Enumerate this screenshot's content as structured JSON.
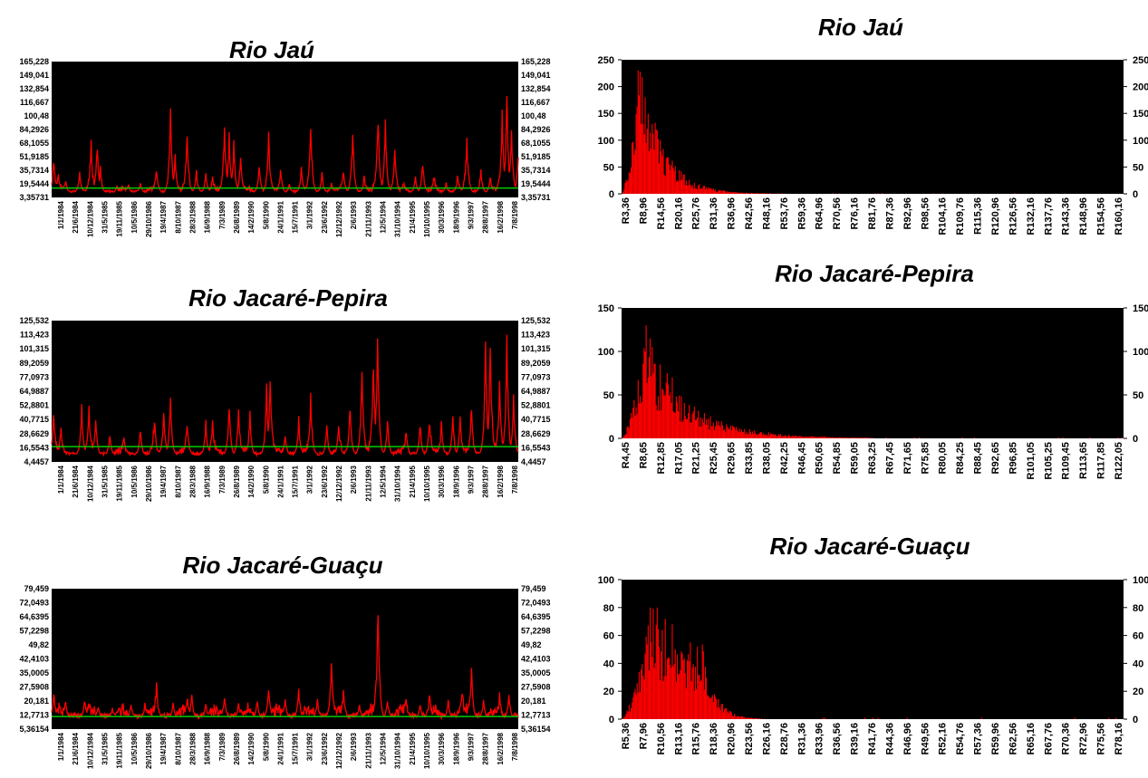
{
  "chart_data": [
    {
      "id": "jau-series",
      "type": "line",
      "title": "Rio Jaú",
      "color": "#ff0000",
      "background": "#000000",
      "reference_color": "#00cc00",
      "reference_value": 14.5,
      "ylim": [
        3.35731,
        165.228
      ],
      "yticks": [
        "165,228",
        "149,041",
        "132,854",
        "116,667",
        "100,48",
        "84,2926",
        "68,1055",
        "51,9185",
        "35,7314",
        "19,5444",
        "3,35731"
      ],
      "xticks": [
        "1/1/1984",
        "21/6/1984",
        "10/12/1984",
        "31/5/1985",
        "19/11/1985",
        "10/5/1986",
        "29/10/1986",
        "19/4/1987",
        "8/10/1987",
        "28/3/1988",
        "16/9/1988",
        "7/3/1989",
        "26/8/1989",
        "14/2/1990",
        "5/8/1990",
        "24/1/1991",
        "15/7/1991",
        "3/1/1992",
        "23/6/1992",
        "12/12/1992",
        "2/6/1993",
        "21/11/1993",
        "12/5/1994",
        "31/10/1994",
        "21/4/1995",
        "10/10/1995",
        "30/3/1996",
        "18/9/1996",
        "9/3/1997",
        "28/8/1997",
        "16/2/1998",
        "7/8/1998"
      ],
      "base": 9,
      "peaks": [
        [
          0.005,
          55
        ],
        [
          0.015,
          32
        ],
        [
          0.03,
          25
        ],
        [
          0.06,
          36
        ],
        [
          0.085,
          72
        ],
        [
          0.098,
          75
        ],
        [
          0.105,
          42
        ],
        [
          0.14,
          15
        ],
        [
          0.165,
          20
        ],
        [
          0.19,
          22
        ],
        [
          0.225,
          40
        ],
        [
          0.255,
          120
        ],
        [
          0.265,
          55
        ],
        [
          0.29,
          88
        ],
        [
          0.31,
          38
        ],
        [
          0.33,
          35
        ],
        [
          0.345,
          28
        ],
        [
          0.37,
          105
        ],
        [
          0.38,
          85
        ],
        [
          0.39,
          75
        ],
        [
          0.405,
          55
        ],
        [
          0.445,
          48
        ],
        [
          0.465,
          88
        ],
        [
          0.49,
          35
        ],
        [
          0.51,
          20
        ],
        [
          0.535,
          42
        ],
        [
          0.555,
          98
        ],
        [
          0.58,
          35
        ],
        [
          0.6,
          22
        ],
        [
          0.625,
          38
        ],
        [
          0.645,
          92
        ],
        [
          0.67,
          30
        ],
        [
          0.7,
          115
        ],
        [
          0.715,
          100
        ],
        [
          0.735,
          68
        ],
        [
          0.755,
          18
        ],
        [
          0.78,
          30
        ],
        [
          0.795,
          50
        ],
        [
          0.82,
          28
        ],
        [
          0.845,
          22
        ],
        [
          0.87,
          30
        ],
        [
          0.89,
          78
        ],
        [
          0.92,
          40
        ],
        [
          0.94,
          28
        ],
        [
          0.965,
          113
        ],
        [
          0.975,
          140
        ],
        [
          0.985,
          95
        ],
        [
          1.0,
          60
        ]
      ]
    },
    {
      "id": "jau-histogram",
      "type": "bar",
      "title": "Rio Jaú",
      "color": "#ff0000",
      "background": "#000000",
      "ylim": [
        0,
        250
      ],
      "yticks": [
        "250",
        "200",
        "150",
        "100",
        "50",
        "0"
      ],
      "xticks": [
        "R3,36",
        "R8,96",
        "R14,56",
        "R20,16",
        "R25,76",
        "R31,36",
        "R36,96",
        "R42,56",
        "R48,16",
        "R53,76",
        "R59,36",
        "R64,96",
        "R70,56",
        "R76,16",
        "R81,76",
        "R87,36",
        "R92,96",
        "R98,56",
        "R104,16",
        "R109,76",
        "R115,36",
        "R120,96",
        "R126,56",
        "R132,16",
        "R137,76",
        "R143,36",
        "R148,96",
        "R154,56",
        "R160,16"
      ],
      "dist": {
        "peak_pos": 0.035,
        "peak_value": 230,
        "rise": 0.025,
        "decay": 0.045,
        "floor_until": 0.4,
        "spikes": [
          [
            0.032,
            230
          ],
          [
            0.045,
            180
          ],
          [
            0.06,
            130
          ],
          [
            0.02,
            95
          ],
          [
            0.075,
            100
          ]
        ]
      }
    },
    {
      "id": "jacare-pepira-series",
      "type": "line",
      "title": "Rio Jacaré-Pepira",
      "color": "#ff0000",
      "background": "#000000",
      "reference_color": "#00cc00",
      "reference_value": 17.5,
      "ylim": [
        4.4457,
        125.532
      ],
      "yticks": [
        "125,532",
        "113,423",
        "101,315",
        "89,2059",
        "77,0973",
        "64,9887",
        "52,8801",
        "40,7715",
        "28,6629",
        "16,5543",
        "4,4457"
      ],
      "xticks": [
        "1/1/1984",
        "21/6/1984",
        "10/12/1984",
        "31/5/1985",
        "19/11/1985",
        "10/5/1986",
        "29/10/1986",
        "19/4/1987",
        "8/10/1987",
        "28/3/1988",
        "16/9/1988",
        "7/3/1989",
        "26/8/1989",
        "14/2/1990",
        "5/8/1990",
        "24/1/1991",
        "15/7/1991",
        "3/1/1992",
        "23/6/1992",
        "12/12/1992",
        "2/6/1993",
        "21/11/1993",
        "12/5/1994",
        "31/10/1994",
        "21/4/1995",
        "10/10/1995",
        "30/3/1996",
        "18/9/1996",
        "9/3/1997",
        "28/8/1997",
        "16/2/1998",
        "7/8/1998"
      ],
      "base": 10,
      "peaks": [
        [
          0.005,
          52
        ],
        [
          0.02,
          30
        ],
        [
          0.065,
          55
        ],
        [
          0.08,
          50
        ],
        [
          0.095,
          45
        ],
        [
          0.125,
          30
        ],
        [
          0.155,
          25
        ],
        [
          0.19,
          35
        ],
        [
          0.22,
          42
        ],
        [
          0.24,
          55
        ],
        [
          0.255,
          68
        ],
        [
          0.29,
          38
        ],
        [
          0.33,
          42
        ],
        [
          0.345,
          40
        ],
        [
          0.38,
          58
        ],
        [
          0.4,
          55
        ],
        [
          0.425,
          45
        ],
        [
          0.46,
          78
        ],
        [
          0.468,
          93
        ],
        [
          0.5,
          30
        ],
        [
          0.53,
          45
        ],
        [
          0.555,
          62
        ],
        [
          0.59,
          40
        ],
        [
          0.615,
          35
        ],
        [
          0.64,
          60
        ],
        [
          0.665,
          95
        ],
        [
          0.69,
          100
        ],
        [
          0.698,
          120
        ],
        [
          0.72,
          45
        ],
        [
          0.76,
          32
        ],
        [
          0.79,
          40
        ],
        [
          0.81,
          45
        ],
        [
          0.835,
          40
        ],
        [
          0.86,
          45
        ],
        [
          0.875,
          42
        ],
        [
          0.9,
          58
        ],
        [
          0.93,
          115
        ],
        [
          0.94,
          118
        ],
        [
          0.96,
          82
        ],
        [
          0.975,
          125
        ],
        [
          0.99,
          70
        ]
      ]
    },
    {
      "id": "jacare-pepira-histogram",
      "type": "bar",
      "title": "Rio Jacaré-Pepira",
      "color": "#ff0000",
      "background": "#000000",
      "ylim": [
        0,
        150
      ],
      "yticks": [
        "150",
        "100",
        "50",
        "0"
      ],
      "xticks": [
        "R4,45",
        "R8,65",
        "R12,85",
        "R17,05",
        "R21,25",
        "R25,45",
        "R29,65",
        "R33,85",
        "R38,05",
        "R42,25",
        "R46,45",
        "R50,65",
        "R54,85",
        "R59,05",
        "R63,25",
        "R67,45",
        "R71,65",
        "R75,85",
        "R80,05",
        "R84,25",
        "R88,45",
        "R92,65",
        "R96,85",
        "R101,05",
        "R105,25",
        "R109,45",
        "R113,65",
        "R117,85",
        "R122,05"
      ],
      "dist": {
        "peak_pos": 0.045,
        "peak_value": 95,
        "rise": 0.035,
        "decay": 0.09,
        "floor_until": 0.5,
        "spikes": [
          [
            0.048,
            130
          ],
          [
            0.055,
            115
          ],
          [
            0.06,
            105
          ],
          [
            0.075,
            85
          ],
          [
            0.09,
            75
          ],
          [
            0.1,
            70
          ]
        ]
      }
    },
    {
      "id": "jacare-guacu-series",
      "type": "line",
      "title": "Rio Jacaré-Guaçu",
      "color": "#ff0000",
      "background": "#000000",
      "reference_color": "#00cc00",
      "reference_value": 12.0,
      "ylim": [
        5.36154,
        79.459
      ],
      "yticks": [
        "79,459",
        "72,0493",
        "64,6395",
        "57,2298",
        "49,82",
        "42,4103",
        "35,0005",
        "27,5908",
        "20,181",
        "12,7713",
        "5,36154"
      ],
      "xticks": [
        "1/1/1984",
        "21/6/1984",
        "10/12/1984",
        "31/5/1985",
        "19/11/1985",
        "10/5/1986",
        "29/10/1986",
        "19/4/1987",
        "8/10/1987",
        "28/3/1988",
        "16/9/1988",
        "7/3/1989",
        "26/8/1989",
        "14/2/1990",
        "5/8/1990",
        "24/1/1991",
        "15/7/1991",
        "3/1/1992",
        "23/6/1992",
        "12/12/1992",
        "2/6/1993",
        "21/11/1993",
        "12/5/1994",
        "31/10/1994",
        "21/4/1995",
        "10/10/1995",
        "30/3/1996",
        "18/9/1996",
        "9/3/1997",
        "28/8/1997",
        "16/2/1998",
        "7/8/1998"
      ],
      "base": 11,
      "peaks": [
        [
          0.005,
          25
        ],
        [
          0.03,
          20
        ],
        [
          0.07,
          20
        ],
        [
          0.1,
          18
        ],
        [
          0.13,
          17
        ],
        [
          0.17,
          20
        ],
        [
          0.2,
          20
        ],
        [
          0.225,
          28
        ],
        [
          0.26,
          20
        ],
        [
          0.29,
          22
        ],
        [
          0.3,
          25
        ],
        [
          0.33,
          20
        ],
        [
          0.37,
          25
        ],
        [
          0.4,
          20
        ],
        [
          0.44,
          22
        ],
        [
          0.465,
          30
        ],
        [
          0.5,
          22
        ],
        [
          0.53,
          28
        ],
        [
          0.57,
          22
        ],
        [
          0.6,
          45
        ],
        [
          0.625,
          24
        ],
        [
          0.66,
          20
        ],
        [
          0.695,
          32
        ],
        [
          0.72,
          22
        ],
        [
          0.76,
          20
        ],
        [
          0.79,
          20
        ],
        [
          0.81,
          22
        ],
        [
          0.85,
          22
        ],
        [
          0.88,
          24
        ],
        [
          0.9,
          38
        ],
        [
          0.925,
          22
        ],
        [
          0.96,
          22
        ],
        [
          0.98,
          25
        ]
      ],
      "extra_peaks": [
        [
          0.7,
          80
        ]
      ]
    },
    {
      "id": "jacare-guacu-histogram",
      "type": "bar",
      "title": "Rio Jacaré-Guaçu",
      "color": "#ff0000",
      "background": "#000000",
      "ylim": [
        0,
        100
      ],
      "yticks": [
        "100",
        "80",
        "60",
        "40",
        "20",
        "0"
      ],
      "xticks": [
        "R5,36",
        "R7,96",
        "R10,56",
        "R13,16",
        "R15,76",
        "R18,36",
        "R20,96",
        "R23,56",
        "R26,16",
        "R28,76",
        "R31,36",
        "R33,96",
        "R36,56",
        "R39,16",
        "R41,76",
        "R44,36",
        "R46,96",
        "R49,56",
        "R52,16",
        "R54,76",
        "R57,36",
        "R59,96",
        "R62,56",
        "R65,16",
        "R67,76",
        "R70,36",
        "R72,96",
        "R75,56",
        "R78,16"
      ],
      "dist": {
        "peak_pos": 0.06,
        "peak_value": 75,
        "rise": 0.04,
        "decay": 0.08,
        "plateau_until": 0.16,
        "plateau_value": 48,
        "floor_until": 0.35,
        "spikes": [
          [
            0.055,
            80
          ],
          [
            0.07,
            80
          ],
          [
            0.085,
            72
          ],
          [
            0.1,
            68
          ],
          [
            0.135,
            55
          ],
          [
            0.15,
            52
          ]
        ]
      }
    }
  ]
}
